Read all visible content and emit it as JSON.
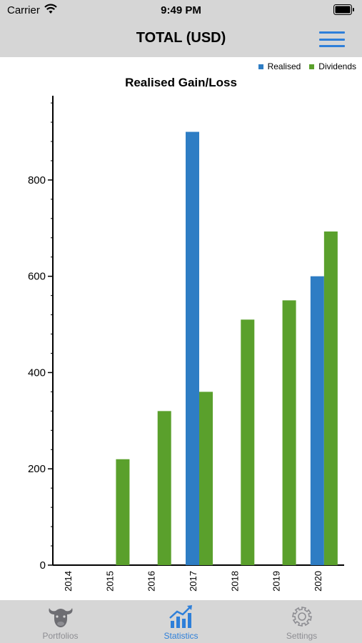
{
  "status_bar": {
    "carrier": "Carrier",
    "time": "9:49 PM"
  },
  "nav": {
    "title": "TOTAL (USD)",
    "menu_icon": "hamburger-menu-icon"
  },
  "tabs": [
    {
      "label": "Portfolios",
      "icon": "bull-head-icon",
      "active": false
    },
    {
      "label": "Statistics",
      "icon": "chart-trend-icon",
      "active": true
    },
    {
      "label": "Settings",
      "icon": "gear-icon",
      "active": false
    }
  ],
  "colors": {
    "realised": "#2e7dc4",
    "dividends": "#5aa02c",
    "accent": "#2e7fd9",
    "bars_bg": "#d6d6d6"
  },
  "chart_data": {
    "type": "bar",
    "title": "Realised Gain/Loss",
    "categories": [
      "2014",
      "2015",
      "2016",
      "2017",
      "2018",
      "2019",
      "2020"
    ],
    "series": [
      {
        "name": "Realised",
        "values": [
          0,
          0,
          0,
          900,
          0,
          0,
          600
        ]
      },
      {
        "name": "Dividends",
        "values": [
          0,
          220,
          320,
          360,
          510,
          550,
          693
        ]
      }
    ],
    "yticks": [
      0,
      200,
      400,
      600,
      800
    ],
    "ylim": [
      0,
      975
    ],
    "legend_position": "top-right",
    "grid": false
  }
}
